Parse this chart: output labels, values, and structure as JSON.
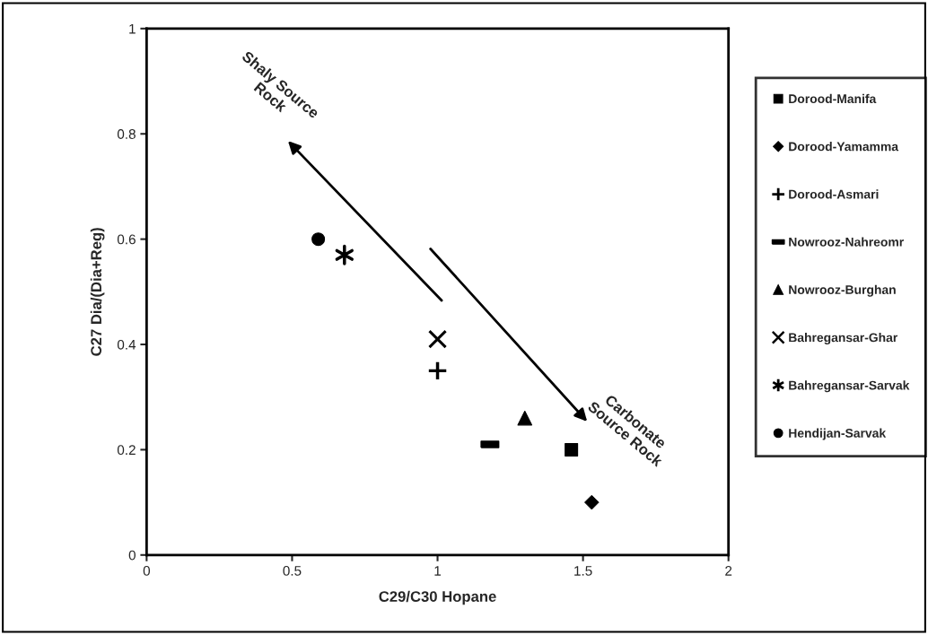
{
  "chart_data": {
    "type": "scatter",
    "xlabel": "C29/C30 Hopane",
    "ylabel": "C27 Dia/(Dia+Reg)",
    "xlim": [
      0,
      2
    ],
    "xticks": [
      0,
      0.5,
      1,
      1.5,
      2
    ],
    "ylim": [
      0,
      1
    ],
    "yticks": [
      0,
      0.2,
      0.4,
      0.6,
      0.8,
      1
    ],
    "grid": false,
    "legend": "right",
    "annotations": [
      "Shaly Source\nRock",
      "Carbonate\nSource Rock"
    ],
    "series": [
      {
        "name": "Dorood-Manifa",
        "color": "#000000",
        "marker": "square",
        "x": [
          1.46
        ],
        "values": [
          0.2
        ]
      },
      {
        "name": "Dorood-Yamamma",
        "color": "#000000",
        "marker": "diamond",
        "x": [
          1.53
        ],
        "values": [
          0.1
        ]
      },
      {
        "name": "Dorood-Asmari",
        "color": "#000000",
        "marker": "cross",
        "x": [
          1.0
        ],
        "values": [
          0.35
        ]
      },
      {
        "name": "Nowrooz-Nahreomr",
        "color": "#000000",
        "marker": "square",
        "x": [
          1.18
        ],
        "values": [
          0.21
        ]
      },
      {
        "name": "Nowrooz-Burghan",
        "color": "#000000",
        "marker": "triangle",
        "x": [
          1.3
        ],
        "values": [
          0.26
        ]
      },
      {
        "name": "Bahregansar-Ghar",
        "color": "#000000",
        "marker": "cross",
        "x": [
          1.0
        ],
        "values": [
          0.41
        ]
      },
      {
        "name": "Bahregansar-Sarvak",
        "color": "#000000",
        "marker": "cross",
        "x": [
          0.68
        ],
        "values": [
          0.57
        ]
      },
      {
        "name": "Hendijan-Sarvak",
        "color": "#000000",
        "marker": "circle",
        "x": [
          0.59
        ],
        "values": [
          0.6
        ]
      }
    ]
  }
}
